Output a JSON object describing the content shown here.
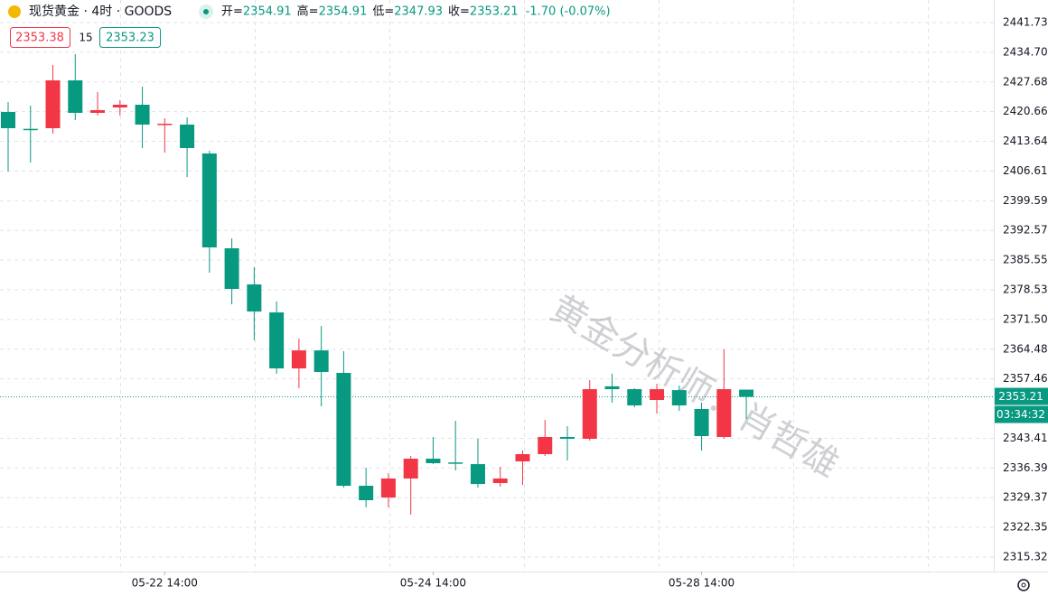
{
  "header": {
    "title": "现货黄金 · 4时 · GOODS",
    "ohlc": [
      {
        "label": "开=",
        "value": "2354.91"
      },
      {
        "label": "高=",
        "value": "2354.91"
      },
      {
        "label": "低=",
        "value": "2347.93"
      },
      {
        "label": "收=",
        "value": "2353.21"
      }
    ],
    "change": "-1.70 (-0.07%)",
    "sell": "2353.38",
    "spread": "15",
    "buy": "2353.23"
  },
  "watermark": "黄金分析师：肖哲雄",
  "chart_data": {
    "type": "candlestick",
    "categories": [
      null,
      null,
      null,
      null,
      null,
      null,
      null,
      "05-22 14:00",
      null,
      null,
      null,
      null,
      null,
      null,
      null,
      null,
      null,
      null,
      null,
      "05-24 14:00",
      null,
      null,
      null,
      null,
      null,
      null,
      null,
      null,
      null,
      null,
      null,
      "05-28 14:00",
      null,
      null
    ],
    "open": [
      2420.59,
      2416.6,
      2416.75,
      2428.06,
      2420.38,
      2421.66,
      2422.3,
      2417.6,
      2417.6,
      2410.77,
      2388.35,
      2379.8,
      2373.18,
      2359.94,
      2364.2,
      2358.88,
      2332.18,
      2329.4,
      2333.9,
      2338.59,
      2337.7,
      2337.3,
      2332.82,
      2337.95,
      2339.66,
      2343.72,
      2343.29,
      2355.7,
      2355.03,
      2352.47,
      2354.8,
      2350.34,
      2343.72,
      2354.91
    ],
    "high": [
      2422.94,
      2422.08,
      2431.69,
      2434.26,
      2425.29,
      2423.37,
      2426.57,
      2419.09,
      2419.31,
      2411.41,
      2390.69,
      2383.9,
      2375.75,
      2366.99,
      2369.98,
      2364.0,
      2336.46,
      2335.17,
      2339.23,
      2343.72,
      2347.56,
      2343.29,
      2336.67,
      2340.51,
      2347.77,
      2346.28,
      2357.17,
      2358.66,
      2355.25,
      2356.31,
      2355.9,
      2351.83,
      2364.43,
      2354.91
    ],
    "low": [
      2406.5,
      2408.63,
      2415.46,
      2418.67,
      2419.74,
      2419.74,
      2412.05,
      2410.98,
      2405.2,
      2382.58,
      2375.1,
      2366.56,
      2358.66,
      2355.25,
      2350.98,
      2331.76,
      2327.06,
      2327.06,
      2325.35,
      2337.3,
      2335.81,
      2331.76,
      2331.97,
      2332.39,
      2339.23,
      2338.17,
      2342.86,
      2351.83,
      2350.76,
      2349.27,
      2349.9,
      2340.51,
      2343.29,
      2347.93
    ],
    "close": [
      2416.75,
      2416.5,
      2428.06,
      2420.38,
      2421.02,
      2422.3,
      2417.6,
      2417.81,
      2412.05,
      2388.56,
      2378.74,
      2373.4,
      2359.94,
      2364.2,
      2359.09,
      2332.18,
      2328.77,
      2333.9,
      2338.59,
      2337.52,
      2337.4,
      2332.6,
      2333.9,
      2339.66,
      2343.72,
      2343.3,
      2355.03,
      2355.03,
      2351.19,
      2355.03,
      2351.19,
      2343.93,
      2355.03,
      2353.21
    ],
    "up_color": "#f23645",
    "down_color": "#089981",
    "ylim": [
      2311.9,
      2447.07
    ],
    "yticks": [
      2441.73,
      {
        "value": 2434.7,
        "label": "2434.70"
      },
      2427.68,
      2420.66,
      2413.64,
      2406.61,
      2399.59,
      2392.57,
      2385.55,
      2378.53,
      {
        "value": 2371.5,
        "label": "2371.50"
      },
      2364.48,
      2357.46,
      2343.41,
      2336.39,
      2329.37,
      2322.35,
      2315.32
    ],
    "grid": true,
    "price_line": {
      "value": 2353.21,
      "countdown": "03:34:32"
    }
  }
}
